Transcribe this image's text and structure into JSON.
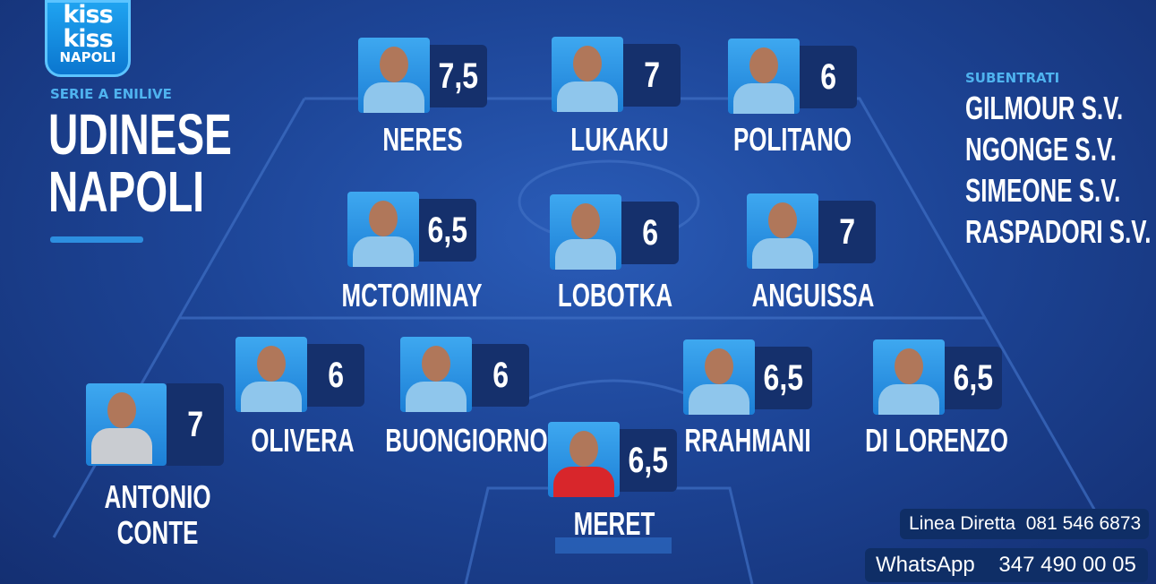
{
  "brand": {
    "line1": "kiss",
    "line2": "kiss",
    "line3": "NAPOLI"
  },
  "competition": "SERIE A ENILIVE",
  "match": {
    "home": "UDINESE",
    "away": "NAPOLI"
  },
  "substitutes": {
    "heading": "SUBENTRATI",
    "items": [
      "GILMOUR S.V.",
      "NGONGE S.V.",
      "SIMEONE S.V.",
      "RASPADORI S.V."
    ]
  },
  "players": [
    {
      "name": "NERES",
      "rating": "7,5",
      "kit": "home"
    },
    {
      "name": "LUKAKU",
      "rating": "7",
      "kit": "home"
    },
    {
      "name": "POLITANO",
      "rating": "6",
      "kit": "home"
    },
    {
      "name": "MCTOMINAY",
      "rating": "6,5",
      "kit": "home"
    },
    {
      "name": "LOBOTKA",
      "rating": "6",
      "kit": "home"
    },
    {
      "name": "ANGUISSA",
      "rating": "7",
      "kit": "home"
    },
    {
      "name": "OLIVERA",
      "rating": "6",
      "kit": "home"
    },
    {
      "name": "BUONGIORNO",
      "rating": "6",
      "kit": "home"
    },
    {
      "name": "RRAHMANI",
      "rating": "6,5",
      "kit": "home"
    },
    {
      "name": "DI LORENZO",
      "rating": "6,5",
      "kit": "home"
    },
    {
      "name": "MERET",
      "rating": "6,5",
      "kit": "goalkeeper"
    },
    {
      "name": "ANTONIO CONTE",
      "rating": "7",
      "kit": "coach"
    }
  ],
  "contacts": {
    "phone_label": "Linea Diretta",
    "phone": "081 546 6873",
    "whatsapp_label": "WhatsApp",
    "whatsapp": "347 490 00 05"
  },
  "colors": {
    "background": "#1d4597",
    "rating_box": "#15306c",
    "accent": "#4fb3ef"
  }
}
